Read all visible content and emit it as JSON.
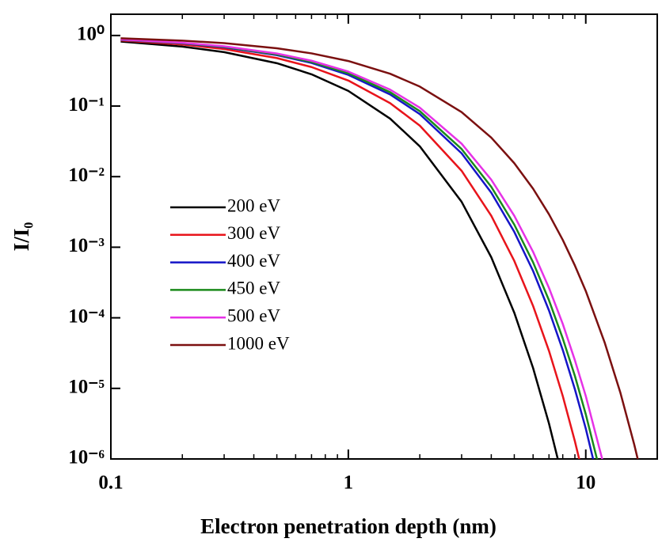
{
  "chart_data": {
    "type": "line",
    "xlabel": "Electron penetration depth (nm)",
    "ylabel": "I/I₀",
    "xscale": "log",
    "yscale": "log",
    "xlim": [
      0.1,
      20
    ],
    "ylim": [
      1e-06,
      2
    ],
    "xticks": [
      0.1,
      1,
      10
    ],
    "xminorticks": [
      0.2,
      0.3,
      0.4,
      0.5,
      0.6,
      0.7,
      0.8,
      0.9,
      2,
      3,
      4,
      5,
      6,
      7,
      8,
      9,
      20
    ],
    "yticks": [
      {
        "value": 1,
        "label": "10⁰"
      },
      {
        "value": 0.1,
        "label": "10⁻¹"
      },
      {
        "value": 0.01,
        "label": "10⁻²"
      },
      {
        "value": 0.001,
        "label": "10⁻³"
      },
      {
        "value": 0.0001,
        "label": "10⁻⁴"
      },
      {
        "value": 1e-05,
        "label": "10⁻⁵"
      },
      {
        "value": 1e-06,
        "label": "10⁻⁶"
      }
    ],
    "legend": "center left",
    "x": [
      0.11,
      0.2,
      0.3,
      0.5,
      0.7,
      1,
      1.5,
      2,
      3,
      4,
      5,
      6,
      7,
      8,
      9,
      10,
      12,
      14,
      16,
      18
    ],
    "series": [
      {
        "name": "200 eV",
        "color": "#000000",
        "values": [
          0.82,
          0.696,
          0.581,
          0.405,
          0.282,
          0.164,
          0.0664,
          0.0269,
          0.0044,
          0.00072,
          0.000118,
          1.94e-05,
          3.18e-06,
          5.2e-07,
          null,
          null,
          null,
          null,
          null,
          null
        ]
      },
      {
        "name": "300 eV",
        "color": "#e8141b",
        "values": [
          0.85,
          0.745,
          0.643,
          0.479,
          0.357,
          0.23,
          0.11,
          0.0528,
          0.0121,
          0.00279,
          0.00064,
          0.000147,
          3.4e-05,
          7.8e-06,
          1.78e-06,
          4.1e-07,
          null,
          null,
          null,
          null
        ]
      },
      {
        "name": "400 eV",
        "color": "#1515c8",
        "values": [
          0.868,
          0.774,
          0.681,
          0.527,
          0.408,
          0.277,
          0.146,
          0.077,
          0.0214,
          0.00593,
          0.00165,
          0.00046,
          0.000127,
          3.5e-05,
          9.7e-06,
          2.7e-06,
          2.1e-07,
          null,
          null,
          null
        ]
      },
      {
        "name": "450 eV",
        "color": "#1a8a1a",
        "values": [
          0.873,
          0.781,
          0.691,
          0.539,
          0.421,
          0.291,
          0.157,
          0.0847,
          0.0246,
          0.00717,
          0.00209,
          0.00061,
          0.000177,
          5.1e-05,
          1.5e-05,
          4.3e-06,
          3.7e-07,
          null,
          null,
          null
        ]
      },
      {
        "name": "500 eV",
        "color": "#e632e6",
        "values": [
          0.879,
          0.79,
          0.703,
          0.555,
          0.439,
          0.308,
          0.171,
          0.095,
          0.0293,
          0.00904,
          0.00279,
          0.00086,
          0.000265,
          8.2e-05,
          2.5e-05,
          7.8e-06,
          7.4e-07,
          null,
          null,
          null
        ]
      },
      {
        "name": "1000 eV",
        "color": "#7b1010",
        "values": [
          0.912,
          0.846,
          0.779,
          0.659,
          0.558,
          0.435,
          0.287,
          0.189,
          0.0821,
          0.0357,
          0.0155,
          0.00674,
          0.00293,
          0.00127,
          0.00055,
          0.00024,
          4.5e-05,
          8.6e-06,
          1.6e-06,
          3.1e-07
        ]
      }
    ]
  }
}
